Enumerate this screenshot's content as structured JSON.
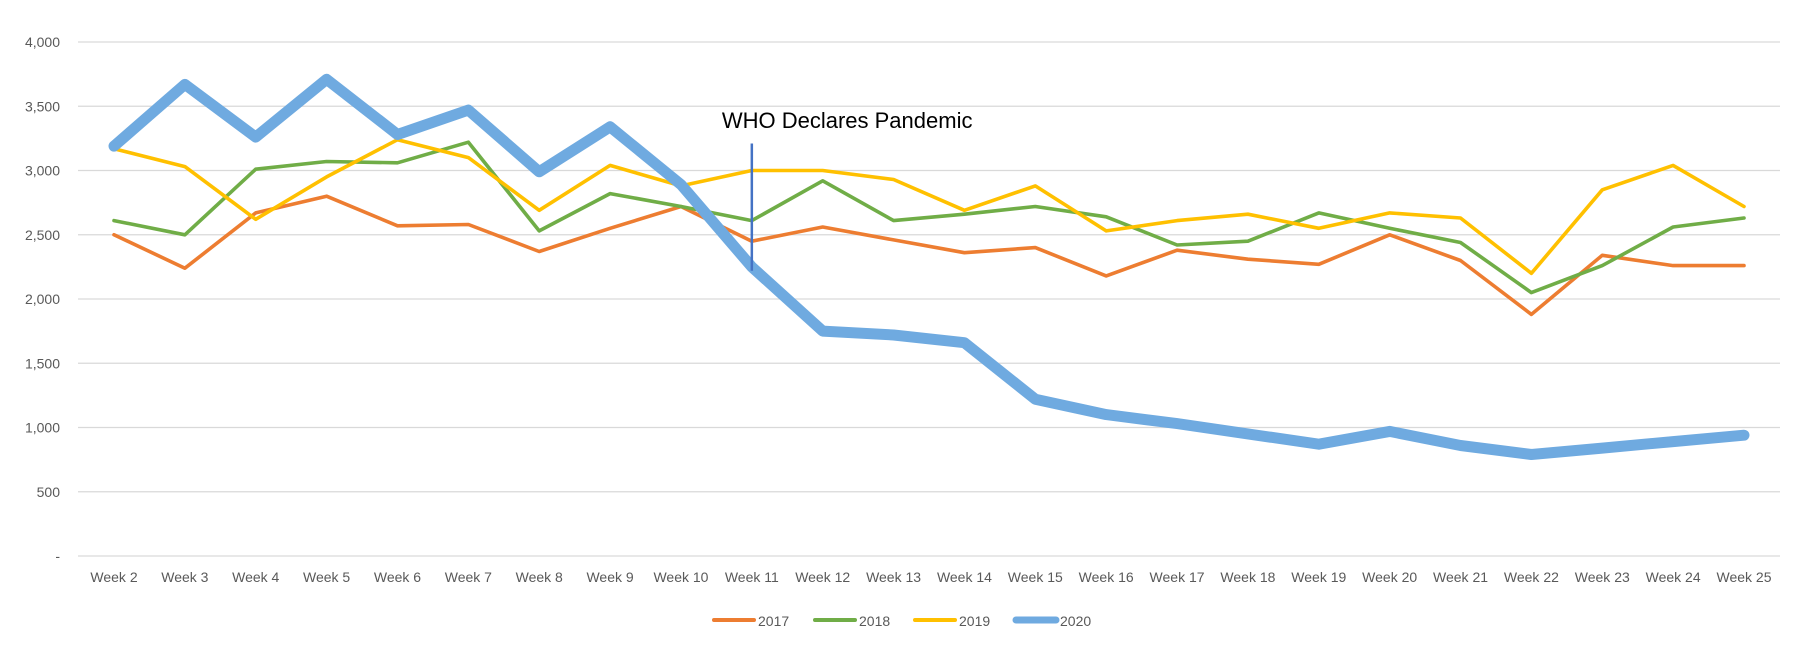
{
  "chart_data": {
    "type": "line",
    "title": "",
    "xlabel": "",
    "ylabel": "",
    "ylim": [
      0,
      4000
    ],
    "yticks": [
      0,
      500,
      1000,
      1500,
      2000,
      2500,
      3000,
      3500,
      4000
    ],
    "ytick_labels": [
      "-",
      "500",
      "1,000",
      "1,500",
      "2,000",
      "2,500",
      "3,000",
      "3,500",
      "4,000"
    ],
    "grid": "horizontal",
    "legend_position": "bottom",
    "categories": [
      "Week 2",
      "Week 3",
      "Week 4",
      "Week 5",
      "Week 6",
      "Week 7",
      "Week 8",
      "Week 9",
      "Week 10",
      "Week 11",
      "Week 12",
      "Week 13",
      "Week 14",
      "Week 15",
      "Week 16",
      "Week 17",
      "Week 18",
      "Week 19",
      "Week 20",
      "Week 21",
      "Week 22",
      "Week 23",
      "Week 24",
      "Week 25"
    ],
    "series": [
      {
        "name": "2017",
        "color": "#ED7D31",
        "width": "thin",
        "values": [
          2500,
          2240,
          2670,
          2800,
          2570,
          2580,
          2370,
          2550,
          2720,
          2450,
          2560,
          2460,
          2360,
          2400,
          2180,
          2380,
          2310,
          2270,
          2500,
          2300,
          1880,
          2340,
          2260,
          2260
        ]
      },
      {
        "name": "2018",
        "color": "#70AD47",
        "width": "thin",
        "values": [
          2610,
          2500,
          3010,
          3070,
          3060,
          3220,
          2530,
          2820,
          2720,
          2610,
          2920,
          2610,
          2660,
          2720,
          2640,
          2420,
          2450,
          2670,
          2550,
          2440,
          2050,
          2260,
          2560,
          2630
        ]
      },
      {
        "name": "2019",
        "color": "#FFC000",
        "width": "thin",
        "values": [
          3170,
          3030,
          2620,
          2950,
          3240,
          3100,
          2690,
          3040,
          2880,
          3000,
          3000,
          2930,
          2690,
          2880,
          2530,
          2610,
          2660,
          2550,
          2670,
          2630,
          2200,
          2850,
          3040,
          2720
        ]
      },
      {
        "name": "2020",
        "color": "#6FAAE0",
        "width": "thick",
        "values": [
          3190,
          3670,
          3260,
          3710,
          3280,
          3470,
          2990,
          3340,
          2890,
          2250,
          1750,
          1720,
          1660,
          1220,
          1100,
          1030,
          950,
          870,
          970,
          860,
          790,
          840,
          890,
          940
        ]
      }
    ],
    "annotations": [
      {
        "text": "WHO Declares Pandemic",
        "category": "Week 11",
        "line_from": 2220,
        "line_to": 3210,
        "color": "#4472C4"
      }
    ]
  }
}
